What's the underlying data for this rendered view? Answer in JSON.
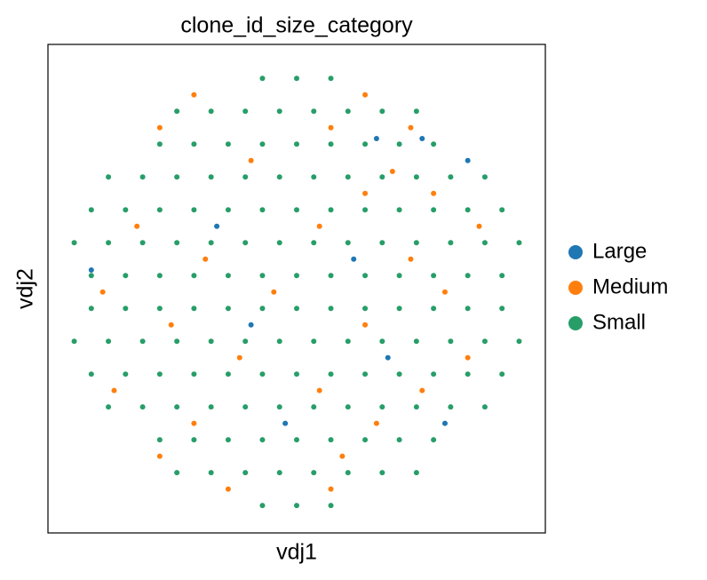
{
  "chart_data": {
    "type": "scatter",
    "title": "clone_id_size_category",
    "x_label": "vdj1",
    "y_label": "vdj2",
    "xlim": [
      -1.09,
      1.09
    ],
    "ylim": [
      -1.1,
      1.13
    ],
    "legend": "right",
    "series": [
      {
        "name": "Large",
        "color": "#1f77b4",
        "x": [
          0.35,
          0.55,
          0.75,
          -0.35,
          0.25,
          -0.9,
          -0.2,
          0.4,
          -0.05,
          0.65
        ],
        "y": [
          0.7,
          0.7,
          0.6,
          0.3,
          0.15,
          0.1,
          -0.15,
          -0.3,
          -0.6,
          -0.6
        ]
      },
      {
        "name": "Medium",
        "color": "#ff7f0e",
        "x": [
          -0.45,
          0.3,
          -0.6,
          0.15,
          0.5,
          -0.2,
          0.3,
          0.6,
          -0.7,
          0.1,
          0.8,
          -0.4,
          0.5,
          -0.85,
          -0.1,
          0.65,
          -0.55,
          0.3,
          -0.25,
          0.75,
          -0.8,
          0.1,
          0.55,
          -0.45,
          0.35,
          -0.6,
          0.2,
          -0.3,
          0.15,
          0.42
        ],
        "y": [
          0.9,
          0.9,
          0.75,
          0.75,
          0.75,
          0.6,
          0.45,
          0.45,
          0.3,
          0.3,
          0.3,
          0.15,
          0.15,
          0,
          0,
          0,
          -0.15,
          -0.15,
          -0.3,
          -0.3,
          -0.45,
          -0.45,
          -0.45,
          -0.6,
          -0.6,
          -0.75,
          -0.75,
          -0.9,
          -0.9,
          0.55
        ]
      },
      {
        "name": "Small",
        "color": "#279e68",
        "x": [
          -0.15,
          0,
          0.15,
          -0.525,
          -0.375,
          -0.225,
          -0.075,
          0.075,
          0.225,
          0.375,
          0.525,
          -0.6,
          -0.45,
          -0.3,
          -0.15,
          0,
          0.15,
          0.3,
          0.45,
          0.6,
          -0.825,
          -0.675,
          -0.525,
          -0.375,
          -0.225,
          -0.075,
          0.075,
          0.225,
          0.375,
          0.525,
          0.675,
          0.825,
          -0.9,
          -0.75,
          -0.6,
          -0.45,
          -0.3,
          -0.15,
          0,
          0.15,
          0.3,
          0.45,
          0.6,
          0.75,
          0.9,
          -0.975,
          -0.825,
          -0.675,
          -0.525,
          -0.375,
          -0.225,
          -0.075,
          0.075,
          0.225,
          0.375,
          0.525,
          0.675,
          0.825,
          0.975,
          -0.9,
          -0.75,
          -0.6,
          -0.45,
          -0.3,
          -0.15,
          0,
          0.15,
          0.3,
          0.45,
          0.6,
          0.75,
          0.9,
          -0.9,
          -0.75,
          -0.6,
          -0.45,
          -0.3,
          -0.15,
          0,
          0.15,
          0.3,
          0.45,
          0.6,
          0.75,
          0.9,
          -0.975,
          -0.825,
          -0.675,
          -0.525,
          -0.375,
          -0.225,
          -0.075,
          0.075,
          0.225,
          0.375,
          0.525,
          0.675,
          0.825,
          0.975,
          -0.9,
          -0.75,
          -0.6,
          -0.45,
          -0.3,
          -0.15,
          0,
          0.15,
          0.3,
          0.45,
          0.6,
          0.75,
          0.9,
          -0.825,
          -0.675,
          -0.525,
          -0.375,
          -0.225,
          -0.075,
          0.075,
          0.225,
          0.375,
          0.525,
          0.675,
          0.825,
          -0.6,
          -0.45,
          -0.3,
          -0.15,
          0,
          0.15,
          0.3,
          0.45,
          0.6,
          -0.525,
          -0.375,
          -0.225,
          -0.075,
          0.075,
          0.225,
          0.375,
          0.525,
          -0.15,
          0,
          0.15
        ],
        "y": [
          0.975,
          0.975,
          0.975,
          0.825,
          0.825,
          0.825,
          0.825,
          0.825,
          0.825,
          0.825,
          0.825,
          0.675,
          0.675,
          0.675,
          0.675,
          0.675,
          0.675,
          0.675,
          0.675,
          0.675,
          0.525,
          0.525,
          0.525,
          0.525,
          0.525,
          0.525,
          0.525,
          0.525,
          0.525,
          0.525,
          0.525,
          0.525,
          0.375,
          0.375,
          0.375,
          0.375,
          0.375,
          0.375,
          0.375,
          0.375,
          0.375,
          0.375,
          0.375,
          0.375,
          0.375,
          0.225,
          0.225,
          0.225,
          0.225,
          0.225,
          0.225,
          0.225,
          0.225,
          0.225,
          0.225,
          0.225,
          0.225,
          0.225,
          0.225,
          0.075,
          0.075,
          0.075,
          0.075,
          0.075,
          0.075,
          0.075,
          0.075,
          0.075,
          0.075,
          0.075,
          0.075,
          0.075,
          -0.075,
          -0.075,
          -0.075,
          -0.075,
          -0.075,
          -0.075,
          -0.075,
          -0.075,
          -0.075,
          -0.075,
          -0.075,
          -0.075,
          -0.075,
          -0.225,
          -0.225,
          -0.225,
          -0.225,
          -0.225,
          -0.225,
          -0.225,
          -0.225,
          -0.225,
          -0.225,
          -0.225,
          -0.225,
          -0.225,
          -0.225,
          -0.375,
          -0.375,
          -0.375,
          -0.375,
          -0.375,
          -0.375,
          -0.375,
          -0.375,
          -0.375,
          -0.375,
          -0.375,
          -0.375,
          -0.375,
          -0.525,
          -0.525,
          -0.525,
          -0.525,
          -0.525,
          -0.525,
          -0.525,
          -0.525,
          -0.525,
          -0.525,
          -0.525,
          -0.525,
          -0.675,
          -0.675,
          -0.675,
          -0.675,
          -0.675,
          -0.675,
          -0.675,
          -0.675,
          -0.675,
          -0.825,
          -0.825,
          -0.825,
          -0.825,
          -0.825,
          -0.825,
          -0.825,
          -0.825,
          -0.975,
          -0.975,
          -0.975
        ]
      }
    ]
  }
}
